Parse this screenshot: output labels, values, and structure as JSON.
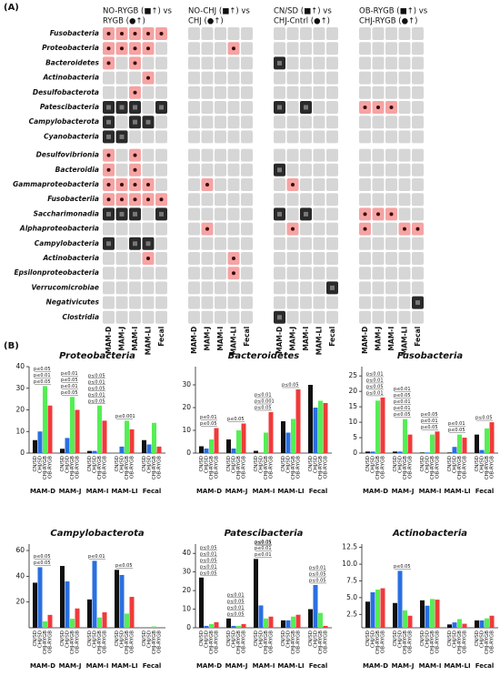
{
  "panels": [
    "(A)",
    "(B)"
  ],
  "chart_data": [
    {
      "type": "dotgrid",
      "columns": [
        "MAM-D",
        "MAM-J",
        "MAM-I",
        "MAM-LI",
        "Fecal"
      ],
      "rows": [
        "Fusobacteria",
        "Proteobacteria",
        "Bacteroidetes",
        "Actinobacteria",
        "Desulfobacterota",
        "Patescibacteria",
        "Campylobacterota",
        "Cyanobacteria",
        "Desulfovibrionia",
        "Bacteroidia",
        "Gammaproteobacteria",
        "Fusobacteriia",
        "Saccharimonadia",
        "Alphaproteobacteria",
        "Campylobacteria",
        "Actinobacteria",
        "Epsilonproteobacteria",
        "Verrucomicrobiae",
        "Negativicutes",
        "Clostridia"
      ],
      "groups": [
        {
          "title": [
            "NO-RYGB (■↑) vs",
            "RYGB (●↑)"
          ],
          "values": [
            [
              1,
              1,
              1,
              1,
              1
            ],
            [
              1,
              1,
              1,
              1,
              0
            ],
            [
              1,
              0,
              1,
              0,
              0
            ],
            [
              0,
              0,
              0,
              1,
              0
            ],
            [
              0,
              0,
              1,
              0,
              0
            ],
            [
              2,
              2,
              2,
              0,
              2
            ],
            [
              2,
              0,
              2,
              2,
              0
            ],
            [
              2,
              2,
              0,
              0,
              0
            ],
            [
              1,
              0,
              1,
              0,
              0
            ],
            [
              1,
              0,
              1,
              0,
              0
            ],
            [
              1,
              1,
              1,
              1,
              0
            ],
            [
              1,
              1,
              1,
              1,
              1
            ],
            [
              2,
              2,
              2,
              0,
              2
            ],
            [
              0,
              0,
              0,
              0,
              0
            ],
            [
              2,
              0,
              2,
              2,
              0
            ],
            [
              0,
              0,
              0,
              1,
              0
            ],
            [
              0,
              0,
              0,
              0,
              0
            ],
            [
              0,
              0,
              0,
              0,
              0
            ],
            [
              0,
              0,
              0,
              0,
              0
            ],
            [
              0,
              0,
              0,
              0,
              0
            ]
          ]
        },
        {
          "title": [
            "NO-CHJ (■↑) vs",
            "CHJ (●↑)"
          ],
          "values": [
            [
              0,
              0,
              0,
              0,
              0
            ],
            [
              0,
              0,
              0,
              1,
              0
            ],
            [
              0,
              0,
              0,
              0,
              0
            ],
            [
              0,
              0,
              0,
              0,
              0
            ],
            [
              0,
              0,
              0,
              0,
              0
            ],
            [
              0,
              0,
              0,
              0,
              0
            ],
            [
              0,
              0,
              0,
              0,
              0
            ],
            [
              0,
              0,
              0,
              0,
              0
            ],
            [
              0,
              0,
              0,
              0,
              0
            ],
            [
              0,
              0,
              0,
              0,
              0
            ],
            [
              0,
              1,
              0,
              0,
              0
            ],
            [
              0,
              0,
              0,
              0,
              0
            ],
            [
              0,
              0,
              0,
              0,
              0
            ],
            [
              0,
              1,
              0,
              0,
              0
            ],
            [
              0,
              0,
              0,
              0,
              0
            ],
            [
              0,
              0,
              0,
              1,
              0
            ],
            [
              0,
              0,
              0,
              1,
              0
            ],
            [
              0,
              0,
              0,
              0,
              0
            ],
            [
              0,
              0,
              0,
              0,
              0
            ],
            [
              0,
              0,
              0,
              0,
              0
            ]
          ]
        },
        {
          "title": [
            "CN/SD (■↑) vs",
            "CHJ-Cntrl (●↑)"
          ],
          "values": [
            [
              0,
              0,
              0,
              0,
              0
            ],
            [
              0,
              0,
              0,
              0,
              0
            ],
            [
              2,
              0,
              0,
              0,
              0
            ],
            [
              0,
              0,
              0,
              0,
              0
            ],
            [
              0,
              0,
              0,
              0,
              0
            ],
            [
              2,
              0,
              2,
              0,
              0
            ],
            [
              0,
              0,
              0,
              0,
              0
            ],
            [
              0,
              0,
              0,
              0,
              0
            ],
            [
              0,
              0,
              0,
              0,
              0
            ],
            [
              2,
              0,
              0,
              0,
              0
            ],
            [
              0,
              1,
              0,
              0,
              0
            ],
            [
              0,
              0,
              0,
              0,
              0
            ],
            [
              2,
              0,
              2,
              0,
              0
            ],
            [
              0,
              1,
              0,
              0,
              0
            ],
            [
              0,
              0,
              0,
              0,
              0
            ],
            [
              0,
              0,
              0,
              0,
              0
            ],
            [
              0,
              0,
              0,
              0,
              0
            ],
            [
              0,
              0,
              0,
              0,
              2
            ],
            [
              0,
              0,
              0,
              0,
              0
            ],
            [
              2,
              0,
              0,
              0,
              0
            ]
          ]
        },
        {
          "title": [
            "OB-RYGB (■↑) vs",
            "CHJ-RYGB (●↑)"
          ],
          "values": [
            [
              0,
              0,
              0,
              0,
              0
            ],
            [
              0,
              0,
              0,
              0,
              0
            ],
            [
              0,
              0,
              0,
              0,
              0
            ],
            [
              0,
              0,
              0,
              0,
              0
            ],
            [
              0,
              0,
              0,
              0,
              0
            ],
            [
              1,
              1,
              1,
              0,
              0
            ],
            [
              0,
              0,
              0,
              0,
              0
            ],
            [
              0,
              0,
              0,
              0,
              0
            ],
            [
              0,
              0,
              0,
              0,
              0
            ],
            [
              0,
              0,
              0,
              0,
              0
            ],
            [
              0,
              0,
              0,
              0,
              0
            ],
            [
              0,
              0,
              0,
              0,
              0
            ],
            [
              1,
              1,
              1,
              0,
              0
            ],
            [
              1,
              0,
              0,
              1,
              1
            ],
            [
              0,
              0,
              0,
              0,
              0
            ],
            [
              0,
              0,
              0,
              0,
              0
            ],
            [
              0,
              0,
              0,
              0,
              0
            ],
            [
              0,
              0,
              0,
              0,
              0
            ],
            [
              0,
              0,
              0,
              0,
              2
            ],
            [
              0,
              0,
              0,
              0,
              0
            ]
          ]
        }
      ]
    },
    {
      "type": "bar",
      "title": "Proteobacteria",
      "categories": [
        "MAM-D",
        "MAM-J",
        "MAM-I",
        "MAM-LI",
        "Fecal"
      ],
      "ylim": [
        0,
        40
      ],
      "yticks": [
        0,
        10,
        20,
        30,
        40
      ],
      "series": [
        {
          "name": "CN/SD",
          "color": "#111111",
          "values": [
            6,
            2,
            1,
            0,
            6
          ]
        },
        {
          "name": "CHJ/SD",
          "color": "#2a6fe0",
          "values": [
            10,
            7,
            1,
            3,
            4
          ]
        },
        {
          "name": "CHJ-RYGB",
          "color": "#55ee55",
          "values": [
            31,
            26,
            22,
            15,
            14
          ]
        },
        {
          "name": "OB-RYGB",
          "color": "#f03a3a",
          "values": [
            22,
            20,
            15,
            11,
            3
          ]
        }
      ],
      "annotations": [
        [
          "p≤0.05",
          "p≤0.01",
          "p≤0.05"
        ],
        [
          "p≤0.05",
          "p≤0.01",
          "p≤0.05",
          "p≤0.01"
        ],
        [
          "p≤0.05",
          "p≤0.01",
          "p≤0.05",
          "p≤0.01",
          "p≤0.05"
        ],
        [
          "p≤0.001"
        ],
        []
      ]
    },
    {
      "type": "bar",
      "title": "Bacteroidetes",
      "categories": [
        "MAM-D",
        "MAM-J",
        "MAM-I",
        "MAM-LI",
        "Fecal"
      ],
      "ylim": [
        0,
        38
      ],
      "yticks": [
        0,
        10,
        20,
        30
      ],
      "series": [
        {
          "name": "CN/SD",
          "color": "#111111",
          "values": [
            3,
            6,
            1,
            14,
            30
          ]
        },
        {
          "name": "CHJ/SD",
          "color": "#2a6fe0",
          "values": [
            2,
            2,
            0,
            9,
            20
          ]
        },
        {
          "name": "CHJ-RYGB",
          "color": "#55ee55",
          "values": [
            6,
            10,
            9,
            15,
            23
          ]
        },
        {
          "name": "OB-RYGB",
          "color": "#f03a3a",
          "values": [
            11,
            13,
            18,
            28,
            22
          ]
        }
      ],
      "annotations": [
        [
          "p≤0.05",
          "p≤0.01"
        ],
        [
          "p≤0.05"
        ],
        [
          "p≤0.05",
          "p≤0.001",
          "p≤0.01"
        ],
        [
          "p≤0.05"
        ],
        []
      ]
    },
    {
      "type": "bar",
      "title": "Fusobacteria",
      "categories": [
        "MAM-D",
        "MAM-J",
        "MAM-I",
        "MAM-LI",
        "Fecal"
      ],
      "ylim": [
        0,
        28
      ],
      "yticks": [
        0,
        5,
        10,
        15,
        20,
        25
      ],
      "series": [
        {
          "name": "CN/SD",
          "color": "#111111",
          "values": [
            0.5,
            0.5,
            0.2,
            0.2,
            6
          ]
        },
        {
          "name": "CHJ/SD",
          "color": "#2a6fe0",
          "values": [
            0.5,
            0.5,
            0.2,
            2,
            1
          ]
        },
        {
          "name": "CHJ-RYGB",
          "color": "#55ee55",
          "values": [
            17,
            11,
            6,
            6,
            8
          ]
        },
        {
          "name": "OB-RYGB",
          "color": "#f03a3a",
          "values": [
            18,
            6,
            7,
            5,
            10
          ]
        }
      ],
      "annotations": [
        [
          "p≤0.01",
          "p≤0.05",
          "p≤0.01",
          "p≤0.01"
        ],
        [
          "p≤0.05",
          "p≤0.01",
          "p≤0.01",
          "p≤0.05",
          "p≤0.01"
        ],
        [
          "p≤0.05",
          "p≤0.01",
          "p≤0.05"
        ],
        [
          "p≤0.05",
          "p≤0.01"
        ],
        [
          "p≤0.05"
        ]
      ]
    },
    {
      "type": "bar",
      "title": "Campylobacterota",
      "categories": [
        "MAM-D",
        "MAM-J",
        "MAM-I",
        "MAM-LI",
        "Fecal"
      ],
      "ylim": [
        0,
        65
      ],
      "yticks": [
        20,
        40,
        60
      ],
      "series": [
        {
          "name": "CN/SD",
          "color": "#111111",
          "values": [
            35,
            48,
            22,
            45,
            0
          ]
        },
        {
          "name": "CHJ/SD",
          "color": "#2a6fe0",
          "values": [
            47,
            36,
            52,
            41,
            0
          ]
        },
        {
          "name": "CHJ-RYGB",
          "color": "#55ee55",
          "values": [
            5,
            7,
            8,
            11,
            1
          ]
        },
        {
          "name": "OB-RYGB",
          "color": "#f03a3a",
          "values": [
            10,
            15,
            12,
            24,
            0
          ]
        }
      ],
      "annotations": [
        [
          "p≤0.05",
          "p≤0.05"
        ],
        [],
        [
          "p≤0.01"
        ],
        [
          "p≤0.05"
        ],
        []
      ]
    },
    {
      "type": "bar",
      "title": "Patescibacteria",
      "categories": [
        "MAM-D",
        "MAM-J",
        "MAM-I",
        "MAM-LI",
        "Fecal"
      ],
      "ylim": [
        0,
        45
      ],
      "yticks": [
        0,
        10,
        20,
        30,
        40
      ],
      "series": [
        {
          "name": "CN/SD",
          "color": "#111111",
          "values": [
            27,
            5,
            37,
            4,
            10
          ]
        },
        {
          "name": "CHJ/SD",
          "color": "#2a6fe0",
          "values": [
            1,
            1,
            12,
            4,
            23
          ]
        },
        {
          "name": "CHJ-RYGB",
          "color": "#55ee55",
          "values": [
            2,
            1,
            5,
            6,
            8
          ]
        },
        {
          "name": "OB-RYGB",
          "color": "#f03a3a",
          "values": [
            3,
            2,
            6,
            7,
            1
          ]
        }
      ],
      "annotations": [
        [
          "p≤0.05",
          "p≤0.01",
          "p≤0.05",
          "p≤0.01",
          "p≤0.05"
        ],
        [
          "p≤0.05",
          "p≤0.01",
          "p≤0.05",
          "p≤0.01"
        ],
        [
          "p≤0.01",
          "p≤0.01",
          "p≤0.05",
          "p≤0.01",
          "p≤0.05"
        ],
        [],
        [
          "p≤0.05",
          "p≤0.05",
          "p≤0.01"
        ]
      ]
    },
    {
      "type": "bar",
      "title": "Actinobacteria",
      "categories": [
        "MAM-D",
        "MAM-J",
        "MAM-I",
        "MAM-LI",
        "Fecal"
      ],
      "ylim": [
        0.5,
        13
      ],
      "yticks": [
        2.5,
        {
          "value": 5,
          "label": "5.0"
        },
        7.5,
        {
          "value": 10,
          "label": "10.0"
        },
        12.5
      ],
      "series": [
        {
          "name": "CN/SD",
          "color": "#111111",
          "values": [
            4.4,
            4.2,
            4.6,
            1.0,
            1.6
          ]
        },
        {
          "name": "CHJ/SD",
          "color": "#2a6fe0",
          "values": [
            5.8,
            9.0,
            3.8,
            1.3,
            1.6
          ]
        },
        {
          "name": "CHJ-RYGB",
          "color": "#55ee55",
          "values": [
            6.2,
            3.1,
            4.8,
            1.8,
            1.9
          ]
        },
        {
          "name": "OB-RYGB",
          "color": "#f03a3a",
          "values": [
            6.4,
            2.3,
            4.7,
            1.1,
            2.3
          ]
        }
      ],
      "annotations": [
        [],
        [
          "p≤0.05"
        ],
        [],
        [],
        []
      ]
    }
  ]
}
